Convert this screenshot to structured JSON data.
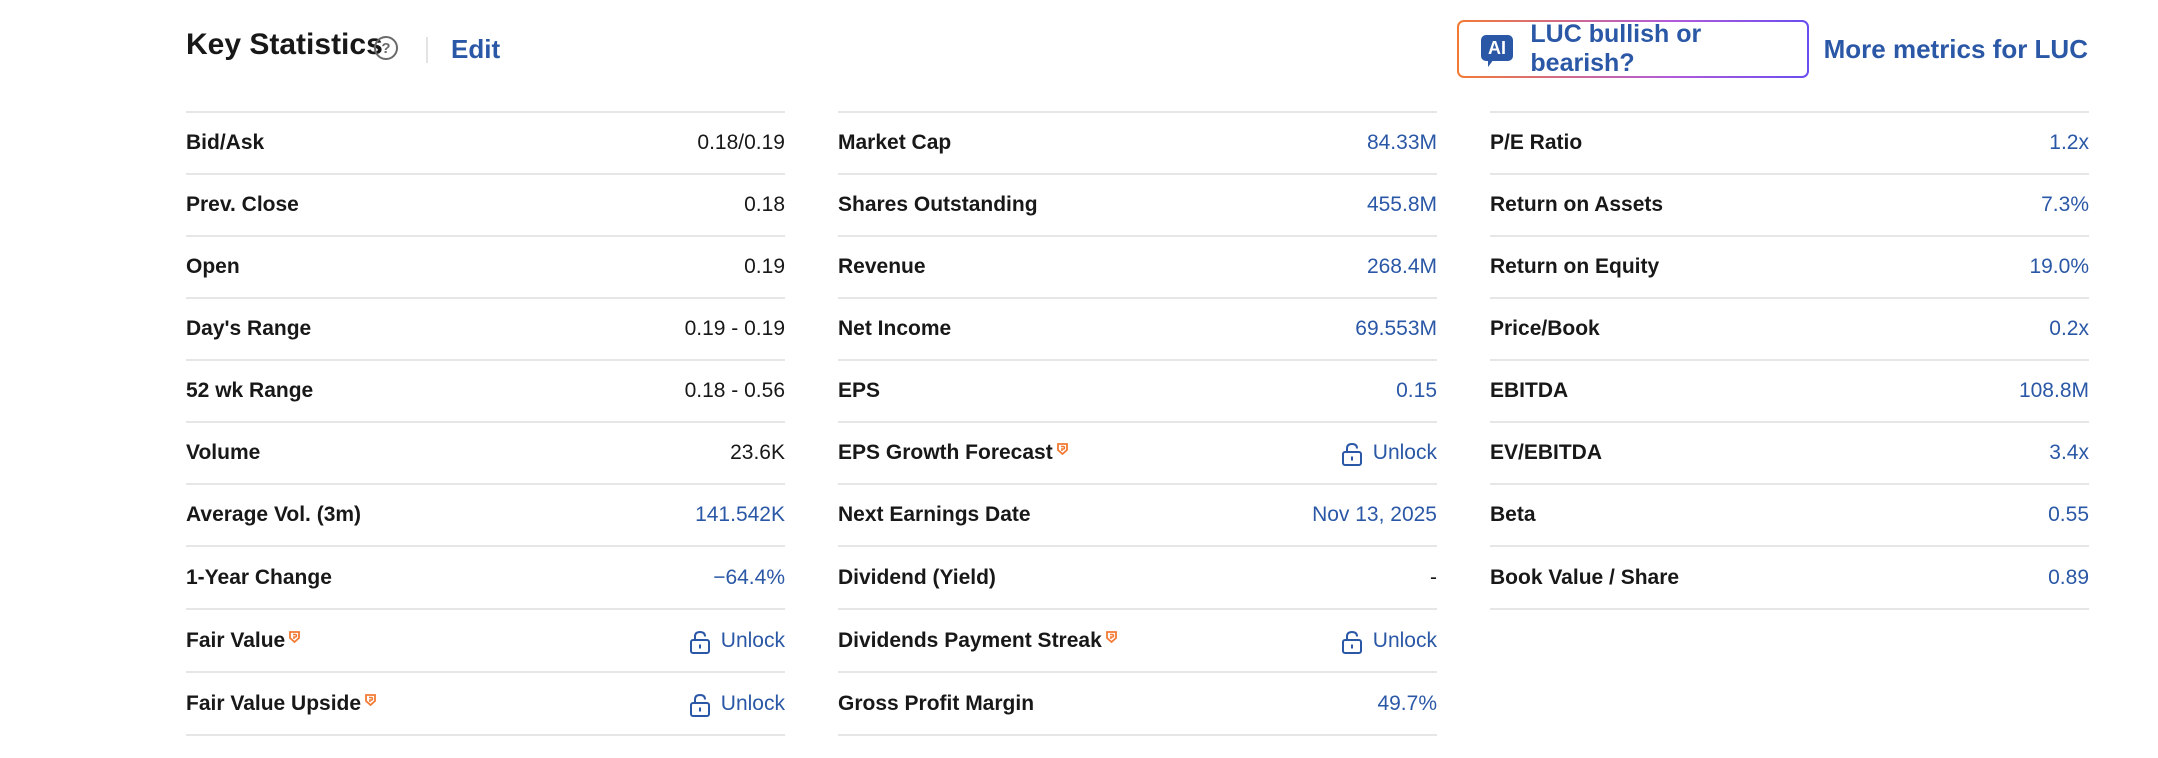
{
  "header": {
    "title": "Key Statistics",
    "help_glyph": "?",
    "edit_label": "Edit",
    "ai_icon_text": "AI",
    "ai_button_label": "LUC bullish or bearish?",
    "more_metrics_label": "More metrics for LUC"
  },
  "colors": {
    "link_blue": "#2b58a6",
    "pro_orange": "#f27a34",
    "text_dark": "#181818",
    "divider": "#e6e6e6"
  },
  "columns": [
    {
      "rows": [
        {
          "label": "Bid/Ask",
          "value": "0.18/0.19",
          "style": "dark"
        },
        {
          "label": "Prev. Close",
          "value": "0.18",
          "style": "dark"
        },
        {
          "label": "Open",
          "value": "0.19",
          "style": "dark"
        },
        {
          "label": "Day's Range",
          "value": "0.19 - 0.19",
          "style": "dark"
        },
        {
          "label": "52 wk Range",
          "value": "0.18 - 0.56",
          "style": "dark"
        },
        {
          "label": "Volume",
          "value": "23.6K",
          "style": "dark"
        },
        {
          "label": "Average Vol. (3m)",
          "value": "141.542K",
          "style": "blue"
        },
        {
          "label": "1-Year Change",
          "value": "−64.4%",
          "style": "blue"
        },
        {
          "label": "Fair Value",
          "value": "Unlock",
          "style": "blue",
          "pro": true,
          "locked": true
        },
        {
          "label": "Fair Value Upside",
          "value": "Unlock",
          "style": "blue",
          "pro": true,
          "locked": true
        }
      ]
    },
    {
      "rows": [
        {
          "label": "Market Cap",
          "value": "84.33M",
          "style": "blue"
        },
        {
          "label": "Shares Outstanding",
          "value": "455.8M",
          "style": "blue"
        },
        {
          "label": "Revenue",
          "value": "268.4M",
          "style": "blue"
        },
        {
          "label": "Net Income",
          "value": "69.553M",
          "style": "blue"
        },
        {
          "label": "EPS",
          "value": "0.15",
          "style": "blue"
        },
        {
          "label": "EPS Growth Forecast",
          "value": "Unlock",
          "style": "blue",
          "pro": true,
          "locked": true
        },
        {
          "label": "Next Earnings Date",
          "value": "Nov 13, 2025",
          "style": "blue"
        },
        {
          "label": "Dividend (Yield)",
          "value": "-",
          "style": "dark"
        },
        {
          "label": "Dividends Payment Streak",
          "value": "Unlock",
          "style": "blue",
          "pro": true,
          "locked": true
        },
        {
          "label": "Gross Profit Margin",
          "value": "49.7%",
          "style": "blue"
        }
      ]
    },
    {
      "rows": [
        {
          "label": "P/E Ratio",
          "value": "1.2x",
          "style": "blue"
        },
        {
          "label": "Return on Assets",
          "value": "7.3%",
          "style": "blue"
        },
        {
          "label": "Return on Equity",
          "value": "19.0%",
          "style": "blue"
        },
        {
          "label": "Price/Book",
          "value": "0.2x",
          "style": "blue"
        },
        {
          "label": "EBITDA",
          "value": "108.8M",
          "style": "blue"
        },
        {
          "label": "EV/EBITDA",
          "value": "3.4x",
          "style": "blue"
        },
        {
          "label": "Beta",
          "value": "0.55",
          "style": "blue"
        },
        {
          "label": "Book Value / Share",
          "value": "0.89",
          "style": "blue"
        }
      ]
    }
  ]
}
